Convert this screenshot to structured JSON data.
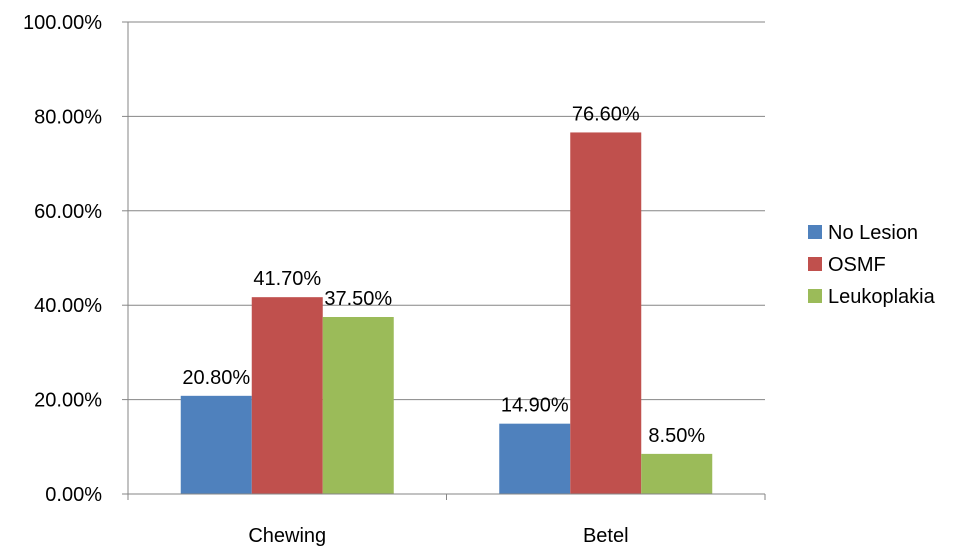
{
  "chart_data": {
    "type": "bar",
    "categories": [
      "Chewing",
      "Betel"
    ],
    "series": [
      {
        "name": "No Lesion",
        "values": [
          20.8,
          14.9
        ],
        "labels": [
          "20.80%",
          "14.90%"
        ],
        "color": "#4F81BD"
      },
      {
        "name": "OSMF",
        "values": [
          41.7,
          76.6
        ],
        "labels": [
          "41.70%",
          "76.60%"
        ],
        "color": "#C0504D"
      },
      {
        "name": "Leukoplakia",
        "values": [
          37.5,
          8.5
        ],
        "labels": [
          "37.50%",
          "8.50%"
        ],
        "color": "#9BBB59"
      }
    ],
    "ylim": [
      0,
      100
    ],
    "yticks": [
      "0.00%",
      "20.00%",
      "40.00%",
      "60.00%",
      "80.00%",
      "100.00%"
    ],
    "grid": true,
    "legend_position": "right"
  }
}
